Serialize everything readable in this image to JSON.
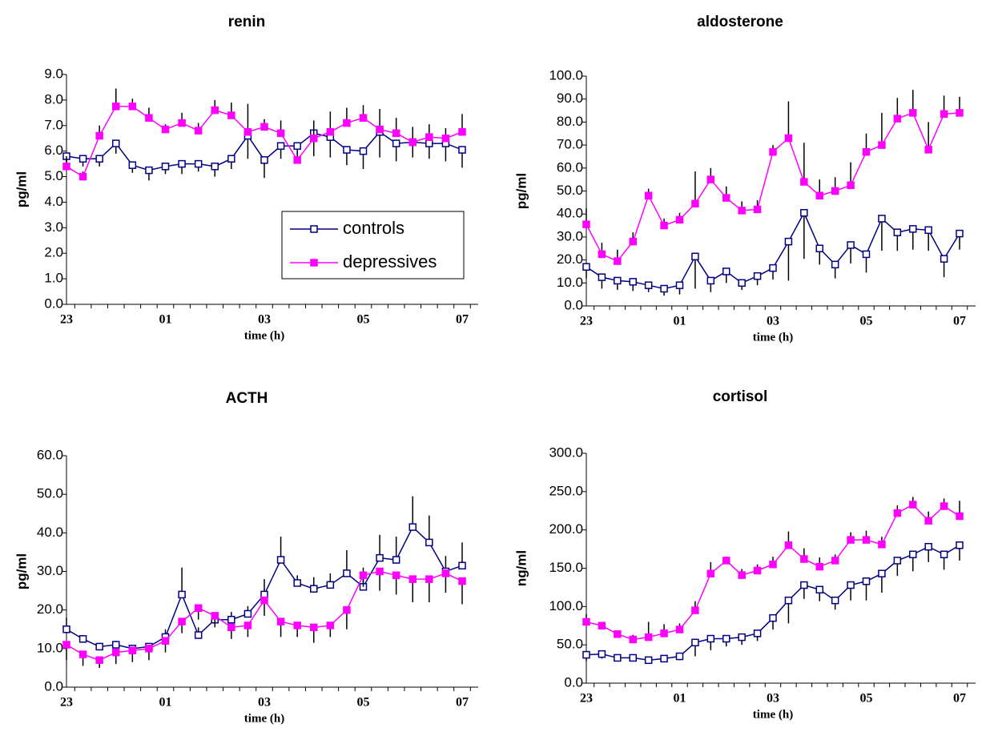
{
  "chart_data": [
    {
      "type": "line",
      "title": "renin",
      "ylabel": "pg/ml",
      "xlabel": "time (h)",
      "categories": [
        "23",
        null,
        null,
        null,
        null,
        null,
        "01",
        null,
        null,
        null,
        null,
        null,
        "03",
        null,
        null,
        null,
        null,
        null,
        "05",
        null,
        null,
        null,
        null,
        null,
        "07"
      ],
      "ylim": [
        0,
        9
      ],
      "yticks": [
        {
          "value": 0,
          "label": "0.0"
        },
        {
          "value": 1,
          "label": "1.0"
        },
        {
          "value": 2,
          "label": "2.0"
        },
        {
          "value": 3,
          "label": "3.0"
        },
        {
          "value": 4,
          "label": "4.0"
        },
        {
          "value": 5,
          "label": "5.0"
        },
        {
          "value": 6,
          "label": "6.0"
        },
        {
          "value": 7,
          "label": "7.0"
        },
        {
          "value": 8,
          "label": "8.0"
        },
        {
          "value": 9,
          "label": "9.0"
        }
      ],
      "legend": "lower right",
      "series": [
        {
          "name": "controls",
          "color": "#000080",
          "filled": false,
          "error_direction": "down",
          "values": [
            5.8,
            5.7,
            5.7,
            6.3,
            5.45,
            5.25,
            5.4,
            5.5,
            5.5,
            5.4,
            5.7,
            6.6,
            5.65,
            6.2,
            6.2,
            6.7,
            6.55,
            6.05,
            6.0,
            6.75,
            6.3,
            6.35,
            6.3,
            6.3,
            6.05
          ],
          "errors": [
            0.3,
            0.3,
            0.3,
            0.4,
            0.3,
            0.4,
            0.3,
            0.4,
            0.3,
            0.4,
            0.4,
            0.9,
            0.7,
            0.5,
            0.3,
            0.9,
            0.8,
            0.6,
            0.7,
            1.0,
            0.7,
            0.6,
            0.6,
            0.7,
            0.7
          ]
        },
        {
          "name": "depressives",
          "color": "#ff00ff",
          "filled": true,
          "error_direction": "up",
          "values": [
            5.4,
            5.0,
            6.6,
            7.75,
            7.75,
            7.3,
            6.85,
            7.1,
            6.8,
            7.6,
            7.4,
            6.75,
            6.95,
            6.7,
            5.65,
            6.5,
            6.75,
            7.1,
            7.3,
            6.85,
            6.7,
            6.35,
            6.55,
            6.5,
            6.75
          ],
          "errors": [
            0.4,
            0.2,
            0.4,
            0.7,
            0.3,
            0.4,
            0.2,
            0.4,
            0.3,
            0.4,
            0.5,
            1.1,
            0.3,
            0.5,
            0.3,
            0.7,
            0.8,
            0.6,
            0.5,
            0.8,
            0.6,
            0.6,
            0.5,
            0.4,
            0.7
          ]
        }
      ]
    },
    {
      "type": "line",
      "title": "aldosterone",
      "ylabel": "pg/ml",
      "xlabel": "time (h)",
      "categories": [
        "23",
        null,
        null,
        null,
        null,
        null,
        "01",
        null,
        null,
        null,
        null,
        null,
        "03",
        null,
        null,
        null,
        null,
        null,
        "05",
        null,
        null,
        null,
        null,
        null,
        "07"
      ],
      "ylim": [
        0,
        100
      ],
      "yticks": [
        {
          "value": 0,
          "label": "0.0"
        },
        {
          "value": 10,
          "label": "10.0"
        },
        {
          "value": 20,
          "label": "20.0"
        },
        {
          "value": 30,
          "label": "30.0"
        },
        {
          "value": 40,
          "label": "40.0"
        },
        {
          "value": 50,
          "label": "50.0"
        },
        {
          "value": 60,
          "label": "60.0"
        },
        {
          "value": 70,
          "label": "70.0"
        },
        {
          "value": 80,
          "label": "80.0"
        },
        {
          "value": 90,
          "label": "90.0"
        },
        {
          "value": 100,
          "label": "100.0"
        }
      ],
      "series": [
        {
          "color": "#000080",
          "filled": false,
          "error_direction": "down",
          "values": [
            17,
            12.5,
            11,
            10.5,
            9,
            7.5,
            9,
            21.5,
            11,
            15,
            10,
            13,
            16.5,
            28,
            40.5,
            25,
            18,
            26.5,
            22.5,
            38,
            32,
            33.5,
            33,
            20.5,
            31.5
          ],
          "errors": [
            5,
            5,
            4,
            4,
            3,
            3,
            4,
            14,
            5,
            5,
            3,
            4,
            5,
            17,
            20,
            7,
            6,
            8,
            8,
            14,
            8,
            9,
            9,
            8,
            7
          ]
        },
        {
          "color": "#ff00ff",
          "filled": true,
          "error_direction": "up",
          "values": [
            35.5,
            22.5,
            19.5,
            28,
            48,
            35,
            37.5,
            44.5,
            55,
            47,
            41.5,
            42,
            67,
            73,
            54,
            48,
            50,
            52.5,
            67,
            70,
            81.5,
            84,
            68,
            83.5,
            84
          ],
          "errors": [
            7,
            5,
            5,
            4,
            3,
            3,
            3,
            14,
            5,
            5,
            4,
            4,
            3,
            16,
            17,
            7,
            6,
            10,
            8,
            14,
            9,
            10,
            12,
            8,
            7
          ]
        }
      ]
    },
    {
      "type": "line",
      "title": "ACTH",
      "ylabel": "pg/ml",
      "xlabel": "time (h)",
      "categories": [
        "23",
        null,
        null,
        null,
        null,
        null,
        "01",
        null,
        null,
        null,
        null,
        null,
        "03",
        null,
        null,
        null,
        null,
        null,
        "05",
        null,
        null,
        null,
        null,
        null,
        "07"
      ],
      "ylim": [
        0,
        60
      ],
      "yticks": [
        {
          "value": 0,
          "label": "0.0"
        },
        {
          "value": 10,
          "label": "10.0"
        },
        {
          "value": 20,
          "label": "20.0"
        },
        {
          "value": 30,
          "label": "30.0"
        },
        {
          "value": 40,
          "label": "40.0"
        },
        {
          "value": 50,
          "label": "50.0"
        },
        {
          "value": 60,
          "label": "60.0"
        }
      ],
      "series": [
        {
          "color": "#000080",
          "filled": false,
          "error_direction": "up",
          "values": [
            15,
            12.5,
            10.5,
            11,
            10,
            10.5,
            13,
            24,
            13.5,
            17.5,
            17.5,
            19,
            24,
            33,
            27,
            25.5,
            26.5,
            29.5,
            26,
            33.5,
            33,
            41.5,
            37.5,
            30,
            31.5
          ],
          "errors": [
            3,
            1,
            1,
            1,
            1,
            1,
            2,
            7,
            2,
            2,
            2,
            2,
            4,
            6,
            2,
            3,
            3,
            6,
            5,
            6,
            6,
            8,
            7,
            4,
            6
          ]
        },
        {
          "color": "#ff00ff",
          "filled": true,
          "error_direction": "down",
          "values": [
            11,
            8.5,
            7,
            9,
            9.5,
            10,
            12,
            17,
            20.5,
            18.5,
            15.5,
            16,
            22.5,
            17,
            16,
            15.5,
            16,
            20,
            29,
            30,
            29,
            28,
            28,
            29.5,
            27.5
          ],
          "errors": [
            4,
            3,
            2,
            3,
            3,
            3,
            3,
            3,
            3,
            3,
            3,
            3,
            4,
            4,
            3,
            4,
            3,
            5,
            3,
            5,
            5,
            6,
            6,
            5,
            6
          ]
        }
      ]
    },
    {
      "type": "line",
      "title": "cortisol",
      "ylabel": "ng/ml",
      "xlabel": "time (h)",
      "categories": [
        "23",
        null,
        null,
        null,
        null,
        null,
        "01",
        null,
        null,
        null,
        null,
        null,
        "03",
        null,
        null,
        null,
        null,
        null,
        "05",
        null,
        null,
        null,
        null,
        null,
        "07"
      ],
      "ylim": [
        0,
        300
      ],
      "yticks": [
        {
          "value": 0,
          "label": "0.0"
        },
        {
          "value": 50,
          "label": "50.0"
        },
        {
          "value": 100,
          "label": "100.0"
        },
        {
          "value": 150,
          "label": "150.0"
        },
        {
          "value": 200,
          "label": "200.0"
        },
        {
          "value": 250,
          "label": "250.0"
        },
        {
          "value": 300,
          "label": "300.0"
        }
      ],
      "series": [
        {
          "color": "#000080",
          "filled": false,
          "error_direction": "down",
          "values": [
            37,
            38,
            33,
            33,
            30,
            32,
            35,
            53,
            58,
            58,
            60,
            65,
            85,
            108,
            128,
            122,
            108,
            128,
            133,
            143,
            160,
            168,
            178,
            168,
            180
          ],
          "errors": [
            8,
            6,
            4,
            4,
            3,
            4,
            5,
            18,
            15,
            10,
            10,
            10,
            15,
            30,
            18,
            15,
            12,
            20,
            25,
            25,
            20,
            22,
            20,
            20,
            20
          ]
        },
        {
          "color": "#ff00ff",
          "filled": true,
          "error_direction": "up",
          "values": [
            80,
            75,
            64,
            57,
            60,
            65,
            70,
            95,
            143,
            160,
            141,
            147,
            155,
            180,
            162,
            152,
            160,
            187,
            187,
            181,
            222,
            233,
            212,
            231,
            218
          ],
          "errors": [
            10,
            5,
            5,
            6,
            20,
            12,
            8,
            12,
            15,
            5,
            8,
            8,
            10,
            18,
            14,
            12,
            8,
            10,
            12,
            10,
            10,
            10,
            12,
            10,
            20
          ]
        }
      ]
    }
  ]
}
